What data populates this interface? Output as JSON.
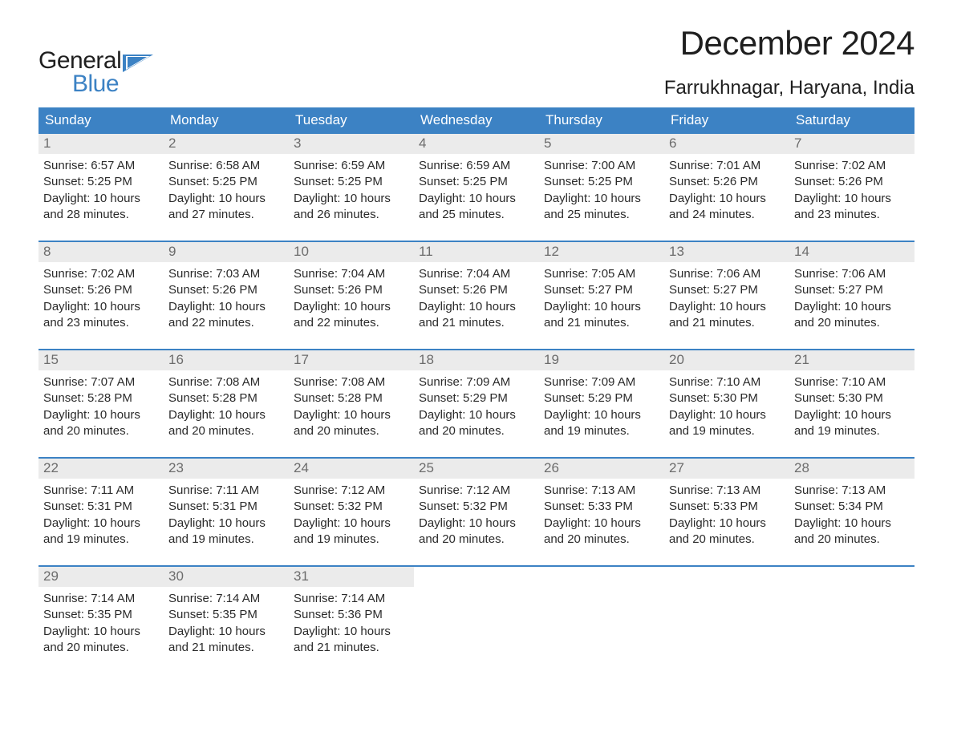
{
  "logo": {
    "line1": "General",
    "line2": "Blue",
    "flag_color": "#3c82c4"
  },
  "header": {
    "month_title": "December 2024",
    "location": "Farrukhnagar, Haryana, India"
  },
  "calendar": {
    "day_names": [
      "Sunday",
      "Monday",
      "Tuesday",
      "Wednesday",
      "Thursday",
      "Friday",
      "Saturday"
    ],
    "header_bg": "#3c82c4",
    "header_fg": "#ffffff",
    "daynum_bg": "#ebebeb",
    "daynum_fg": "#6c6c6c",
    "row_border_color": "#3c82c4",
    "text_color": "#2a2a2a",
    "fontsize_header": 17,
    "fontsize_daynum": 17,
    "fontsize_body": 15,
    "weeks": [
      [
        {
          "n": "1",
          "sr": "Sunrise: 6:57 AM",
          "ss": "Sunset: 5:25 PM",
          "d1": "Daylight: 10 hours",
          "d2": "and 28 minutes."
        },
        {
          "n": "2",
          "sr": "Sunrise: 6:58 AM",
          "ss": "Sunset: 5:25 PM",
          "d1": "Daylight: 10 hours",
          "d2": "and 27 minutes."
        },
        {
          "n": "3",
          "sr": "Sunrise: 6:59 AM",
          "ss": "Sunset: 5:25 PM",
          "d1": "Daylight: 10 hours",
          "d2": "and 26 minutes."
        },
        {
          "n": "4",
          "sr": "Sunrise: 6:59 AM",
          "ss": "Sunset: 5:25 PM",
          "d1": "Daylight: 10 hours",
          "d2": "and 25 minutes."
        },
        {
          "n": "5",
          "sr": "Sunrise: 7:00 AM",
          "ss": "Sunset: 5:25 PM",
          "d1": "Daylight: 10 hours",
          "d2": "and 25 minutes."
        },
        {
          "n": "6",
          "sr": "Sunrise: 7:01 AM",
          "ss": "Sunset: 5:26 PM",
          "d1": "Daylight: 10 hours",
          "d2": "and 24 minutes."
        },
        {
          "n": "7",
          "sr": "Sunrise: 7:02 AM",
          "ss": "Sunset: 5:26 PM",
          "d1": "Daylight: 10 hours",
          "d2": "and 23 minutes."
        }
      ],
      [
        {
          "n": "8",
          "sr": "Sunrise: 7:02 AM",
          "ss": "Sunset: 5:26 PM",
          "d1": "Daylight: 10 hours",
          "d2": "and 23 minutes."
        },
        {
          "n": "9",
          "sr": "Sunrise: 7:03 AM",
          "ss": "Sunset: 5:26 PM",
          "d1": "Daylight: 10 hours",
          "d2": "and 22 minutes."
        },
        {
          "n": "10",
          "sr": "Sunrise: 7:04 AM",
          "ss": "Sunset: 5:26 PM",
          "d1": "Daylight: 10 hours",
          "d2": "and 22 minutes."
        },
        {
          "n": "11",
          "sr": "Sunrise: 7:04 AM",
          "ss": "Sunset: 5:26 PM",
          "d1": "Daylight: 10 hours",
          "d2": "and 21 minutes."
        },
        {
          "n": "12",
          "sr": "Sunrise: 7:05 AM",
          "ss": "Sunset: 5:27 PM",
          "d1": "Daylight: 10 hours",
          "d2": "and 21 minutes."
        },
        {
          "n": "13",
          "sr": "Sunrise: 7:06 AM",
          "ss": "Sunset: 5:27 PM",
          "d1": "Daylight: 10 hours",
          "d2": "and 21 minutes."
        },
        {
          "n": "14",
          "sr": "Sunrise: 7:06 AM",
          "ss": "Sunset: 5:27 PM",
          "d1": "Daylight: 10 hours",
          "d2": "and 20 minutes."
        }
      ],
      [
        {
          "n": "15",
          "sr": "Sunrise: 7:07 AM",
          "ss": "Sunset: 5:28 PM",
          "d1": "Daylight: 10 hours",
          "d2": "and 20 minutes."
        },
        {
          "n": "16",
          "sr": "Sunrise: 7:08 AM",
          "ss": "Sunset: 5:28 PM",
          "d1": "Daylight: 10 hours",
          "d2": "and 20 minutes."
        },
        {
          "n": "17",
          "sr": "Sunrise: 7:08 AM",
          "ss": "Sunset: 5:28 PM",
          "d1": "Daylight: 10 hours",
          "d2": "and 20 minutes."
        },
        {
          "n": "18",
          "sr": "Sunrise: 7:09 AM",
          "ss": "Sunset: 5:29 PM",
          "d1": "Daylight: 10 hours",
          "d2": "and 20 minutes."
        },
        {
          "n": "19",
          "sr": "Sunrise: 7:09 AM",
          "ss": "Sunset: 5:29 PM",
          "d1": "Daylight: 10 hours",
          "d2": "and 19 minutes."
        },
        {
          "n": "20",
          "sr": "Sunrise: 7:10 AM",
          "ss": "Sunset: 5:30 PM",
          "d1": "Daylight: 10 hours",
          "d2": "and 19 minutes."
        },
        {
          "n": "21",
          "sr": "Sunrise: 7:10 AM",
          "ss": "Sunset: 5:30 PM",
          "d1": "Daylight: 10 hours",
          "d2": "and 19 minutes."
        }
      ],
      [
        {
          "n": "22",
          "sr": "Sunrise: 7:11 AM",
          "ss": "Sunset: 5:31 PM",
          "d1": "Daylight: 10 hours",
          "d2": "and 19 minutes."
        },
        {
          "n": "23",
          "sr": "Sunrise: 7:11 AM",
          "ss": "Sunset: 5:31 PM",
          "d1": "Daylight: 10 hours",
          "d2": "and 19 minutes."
        },
        {
          "n": "24",
          "sr": "Sunrise: 7:12 AM",
          "ss": "Sunset: 5:32 PM",
          "d1": "Daylight: 10 hours",
          "d2": "and 19 minutes."
        },
        {
          "n": "25",
          "sr": "Sunrise: 7:12 AM",
          "ss": "Sunset: 5:32 PM",
          "d1": "Daylight: 10 hours",
          "d2": "and 20 minutes."
        },
        {
          "n": "26",
          "sr": "Sunrise: 7:13 AM",
          "ss": "Sunset: 5:33 PM",
          "d1": "Daylight: 10 hours",
          "d2": "and 20 minutes."
        },
        {
          "n": "27",
          "sr": "Sunrise: 7:13 AM",
          "ss": "Sunset: 5:33 PM",
          "d1": "Daylight: 10 hours",
          "d2": "and 20 minutes."
        },
        {
          "n": "28",
          "sr": "Sunrise: 7:13 AM",
          "ss": "Sunset: 5:34 PM",
          "d1": "Daylight: 10 hours",
          "d2": "and 20 minutes."
        }
      ],
      [
        {
          "n": "29",
          "sr": "Sunrise: 7:14 AM",
          "ss": "Sunset: 5:35 PM",
          "d1": "Daylight: 10 hours",
          "d2": "and 20 minutes."
        },
        {
          "n": "30",
          "sr": "Sunrise: 7:14 AM",
          "ss": "Sunset: 5:35 PM",
          "d1": "Daylight: 10 hours",
          "d2": "and 21 minutes."
        },
        {
          "n": "31",
          "sr": "Sunrise: 7:14 AM",
          "ss": "Sunset: 5:36 PM",
          "d1": "Daylight: 10 hours",
          "d2": "and 21 minutes."
        },
        null,
        null,
        null,
        null
      ]
    ]
  }
}
